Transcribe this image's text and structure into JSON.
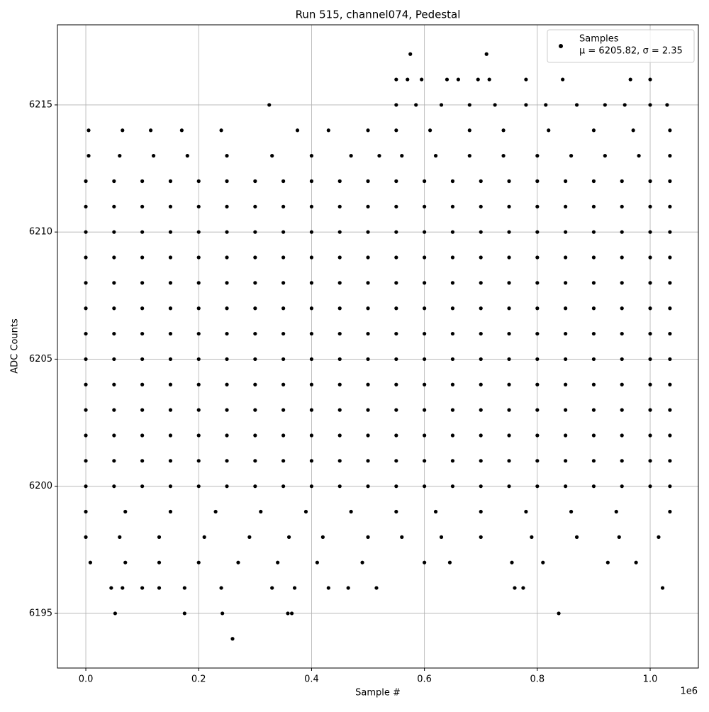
{
  "chart_data": {
    "type": "scatter",
    "title": "Run 515, channel074, Pedestal",
    "x_label": "Sample #",
    "y_label": "ADC Counts",
    "x_offset_label": "1e6",
    "legend_note": "μ = 6205.82, σ = 2.35",
    "legend_position": "upper right",
    "grid": true,
    "xlim": [
      -50300,
      1085400
    ],
    "ylim": [
      6192.85,
      6218.15
    ],
    "xticks": [
      {
        "value": 0,
        "label": "0.0"
      },
      {
        "value": 200000,
        "label": "0.2"
      },
      {
        "value": 400000,
        "label": "0.4"
      },
      {
        "value": 600000,
        "label": "0.6"
      },
      {
        "value": 800000,
        "label": "0.8"
      },
      {
        "value": 1000000,
        "label": "1.0"
      }
    ],
    "yticks": [
      6195,
      6200,
      6205,
      6210,
      6215
    ],
    "series": [
      {
        "name": "Samples",
        "color": "#000000",
        "x": [
          0,
          50000,
          100000,
          150000,
          200000,
          250000,
          300000,
          350000,
          400000,
          450000,
          500000,
          550000,
          600000,
          650000,
          700000,
          750000,
          800000,
          850000,
          900000,
          950000,
          1000000,
          1035000,
          0,
          50000,
          100000,
          150000,
          200000,
          250000,
          300000,
          350000,
          400000,
          450000,
          500000,
          550000,
          600000,
          650000,
          700000,
          750000,
          800000,
          850000,
          900000,
          950000,
          1000000,
          1035000,
          0,
          50000,
          100000,
          150000,
          200000,
          250000,
          300000,
          350000,
          400000,
          450000,
          500000,
          550000,
          600000,
          650000,
          700000,
          750000,
          800000,
          850000,
          900000,
          950000,
          1000000,
          1035000,
          0,
          50000,
          100000,
          150000,
          200000,
          250000,
          300000,
          350000,
          400000,
          450000,
          500000,
          550000,
          600000,
          650000,
          700000,
          750000,
          800000,
          850000,
          900000,
          950000,
          1000000,
          1035000,
          0,
          50000,
          100000,
          150000,
          200000,
          250000,
          300000,
          350000,
          400000,
          450000,
          500000,
          550000,
          600000,
          650000,
          700000,
          750000,
          800000,
          850000,
          900000,
          950000,
          1000000,
          1035000,
          0,
          50000,
          100000,
          150000,
          200000,
          250000,
          300000,
          350000,
          400000,
          450000,
          500000,
          550000,
          600000,
          650000,
          700000,
          750000,
          800000,
          850000,
          900000,
          950000,
          1000000,
          1035000,
          0,
          50000,
          100000,
          150000,
          200000,
          250000,
          300000,
          350000,
          400000,
          450000,
          500000,
          550000,
          600000,
          650000,
          700000,
          750000,
          800000,
          850000,
          900000,
          950000,
          1000000,
          1035000,
          0,
          50000,
          100000,
          150000,
          200000,
          250000,
          300000,
          350000,
          400000,
          450000,
          500000,
          550000,
          600000,
          650000,
          700000,
          750000,
          800000,
          850000,
          900000,
          950000,
          1000000,
          1035000,
          0,
          50000,
          100000,
          150000,
          200000,
          250000,
          300000,
          350000,
          400000,
          450000,
          500000,
          550000,
          600000,
          650000,
          700000,
          750000,
          800000,
          850000,
          900000,
          950000,
          1000000,
          1035000,
          0,
          50000,
          100000,
          150000,
          200000,
          250000,
          300000,
          350000,
          400000,
          450000,
          500000,
          550000,
          600000,
          650000,
          700000,
          750000,
          800000,
          850000,
          900000,
          950000,
          1000000,
          1035000,
          0,
          50000,
          100000,
          150000,
          200000,
          250000,
          300000,
          350000,
          400000,
          450000,
          500000,
          550000,
          600000,
          650000,
          700000,
          750000,
          800000,
          850000,
          900000,
          950000,
          1000000,
          1035000,
          0,
          50000,
          100000,
          150000,
          200000,
          250000,
          300000,
          350000,
          400000,
          450000,
          500000,
          550000,
          600000,
          650000,
          700000,
          750000,
          800000,
          850000,
          900000,
          950000,
          1000000,
          1035000,
          0,
          50000,
          100000,
          150000,
          200000,
          250000,
          300000,
          350000,
          400000,
          450000,
          500000,
          550000,
          600000,
          650000,
          700000,
          750000,
          800000,
          850000,
          900000,
          950000,
          1000000,
          1035000,
          5000,
          60000,
          120000,
          180000,
          250000,
          330000,
          400000,
          470000,
          520000,
          560000,
          620000,
          680000,
          740000,
          800000,
          860000,
          920000,
          980000,
          1035000,
          0,
          70000,
          150000,
          230000,
          310000,
          390000,
          470000,
          550000,
          620000,
          700000,
          780000,
          860000,
          940000,
          1035000,
          5000,
          65000,
          115000,
          170000,
          240000,
          375000,
          430000,
          500000,
          550000,
          610000,
          680000,
          740000,
          820000,
          900000,
          970000,
          1035000,
          0,
          60000,
          130000,
          210000,
          290000,
          360000,
          420000,
          500000,
          560000,
          630000,
          700000,
          790000,
          870000,
          945000,
          1015000,
          8000,
          70000,
          130000,
          200000,
          270000,
          340000,
          410000,
          490000,
          600000,
          645000,
          755000,
          810000,
          925000,
          975000,
          325000,
          550000,
          585000,
          630000,
          680000,
          725000,
          780000,
          815000,
          870000,
          920000,
          955000,
          1000000,
          1030000,
          550000,
          570000,
          595000,
          640000,
          660000,
          695000,
          715000,
          780000,
          845000,
          965000,
          1000000,
          575000,
          710000,
          45000,
          65000,
          100000,
          130000,
          175000,
          240000,
          330000,
          370000,
          430000,
          465000,
          515000,
          760000,
          775000,
          1022000,
          52000,
          175000,
          242000,
          358000,
          365000,
          838000,
          260000
        ],
        "y": [
          6200,
          6200,
          6200,
          6200,
          6200,
          6200,
          6200,
          6200,
          6200,
          6200,
          6200,
          6200,
          6200,
          6200,
          6200,
          6200,
          6200,
          6200,
          6200,
          6200,
          6200,
          6200,
          6201,
          6201,
          6201,
          6201,
          6201,
          6201,
          6201,
          6201,
          6201,
          6201,
          6201,
          6201,
          6201,
          6201,
          6201,
          6201,
          6201,
          6201,
          6201,
          6201,
          6201,
          6201,
          6202,
          6202,
          6202,
          6202,
          6202,
          6202,
          6202,
          6202,
          6202,
          6202,
          6202,
          6202,
          6202,
          6202,
          6202,
          6202,
          6202,
          6202,
          6202,
          6202,
          6202,
          6202,
          6203,
          6203,
          6203,
          6203,
          6203,
          6203,
          6203,
          6203,
          6203,
          6203,
          6203,
          6203,
          6203,
          6203,
          6203,
          6203,
          6203,
          6203,
          6203,
          6203,
          6203,
          6203,
          6204,
          6204,
          6204,
          6204,
          6204,
          6204,
          6204,
          6204,
          6204,
          6204,
          6204,
          6204,
          6204,
          6204,
          6204,
          6204,
          6204,
          6204,
          6204,
          6204,
          6204,
          6204,
          6205,
          6205,
          6205,
          6205,
          6205,
          6205,
          6205,
          6205,
          6205,
          6205,
          6205,
          6205,
          6205,
          6205,
          6205,
          6205,
          6205,
          6205,
          6205,
          6205,
          6205,
          6205,
          6206,
          6206,
          6206,
          6206,
          6206,
          6206,
          6206,
          6206,
          6206,
          6206,
          6206,
          6206,
          6206,
          6206,
          6206,
          6206,
          6206,
          6206,
          6206,
          6206,
          6206,
          6206,
          6207,
          6207,
          6207,
          6207,
          6207,
          6207,
          6207,
          6207,
          6207,
          6207,
          6207,
          6207,
          6207,
          6207,
          6207,
          6207,
          6207,
          6207,
          6207,
          6207,
          6207,
          6207,
          6208,
          6208,
          6208,
          6208,
          6208,
          6208,
          6208,
          6208,
          6208,
          6208,
          6208,
          6208,
          6208,
          6208,
          6208,
          6208,
          6208,
          6208,
          6208,
          6208,
          6208,
          6208,
          6209,
          6209,
          6209,
          6209,
          6209,
          6209,
          6209,
          6209,
          6209,
          6209,
          6209,
          6209,
          6209,
          6209,
          6209,
          6209,
          6209,
          6209,
          6209,
          6209,
          6209,
          6209,
          6210,
          6210,
          6210,
          6210,
          6210,
          6210,
          6210,
          6210,
          6210,
          6210,
          6210,
          6210,
          6210,
          6210,
          6210,
          6210,
          6210,
          6210,
          6210,
          6210,
          6210,
          6210,
          6211,
          6211,
          6211,
          6211,
          6211,
          6211,
          6211,
          6211,
          6211,
          6211,
          6211,
          6211,
          6211,
          6211,
          6211,
          6211,
          6211,
          6211,
          6211,
          6211,
          6211,
          6211,
          6212,
          6212,
          6212,
          6212,
          6212,
          6212,
          6212,
          6212,
          6212,
          6212,
          6212,
          6212,
          6212,
          6212,
          6212,
          6212,
          6212,
          6212,
          6212,
          6212,
          6212,
          6212,
          6213,
          6213,
          6213,
          6213,
          6213,
          6213,
          6213,
          6213,
          6213,
          6213,
          6213,
          6213,
          6213,
          6213,
          6213,
          6213,
          6213,
          6213,
          6199,
          6199,
          6199,
          6199,
          6199,
          6199,
          6199,
          6199,
          6199,
          6199,
          6199,
          6199,
          6199,
          6199,
          6214,
          6214,
          6214,
          6214,
          6214,
          6214,
          6214,
          6214,
          6214,
          6214,
          6214,
          6214,
          6214,
          6214,
          6214,
          6214,
          6198,
          6198,
          6198,
          6198,
          6198,
          6198,
          6198,
          6198,
          6198,
          6198,
          6198,
          6198,
          6198,
          6198,
          6198,
          6197,
          6197,
          6197,
          6197,
          6197,
          6197,
          6197,
          6197,
          6197,
          6197,
          6197,
          6197,
          6197,
          6197,
          6215,
          6215,
          6215,
          6215,
          6215,
          6215,
          6215,
          6215,
          6215,
          6215,
          6215,
          6215,
          6215,
          6216,
          6216,
          6216,
          6216,
          6216,
          6216,
          6216,
          6216,
          6216,
          6216,
          6216,
          6217,
          6217,
          6196,
          6196,
          6196,
          6196,
          6196,
          6196,
          6196,
          6196,
          6196,
          6196,
          6196,
          6196,
          6196,
          6196,
          6195,
          6195,
          6195,
          6195,
          6195,
          6195,
          6194
        ]
      }
    ]
  }
}
